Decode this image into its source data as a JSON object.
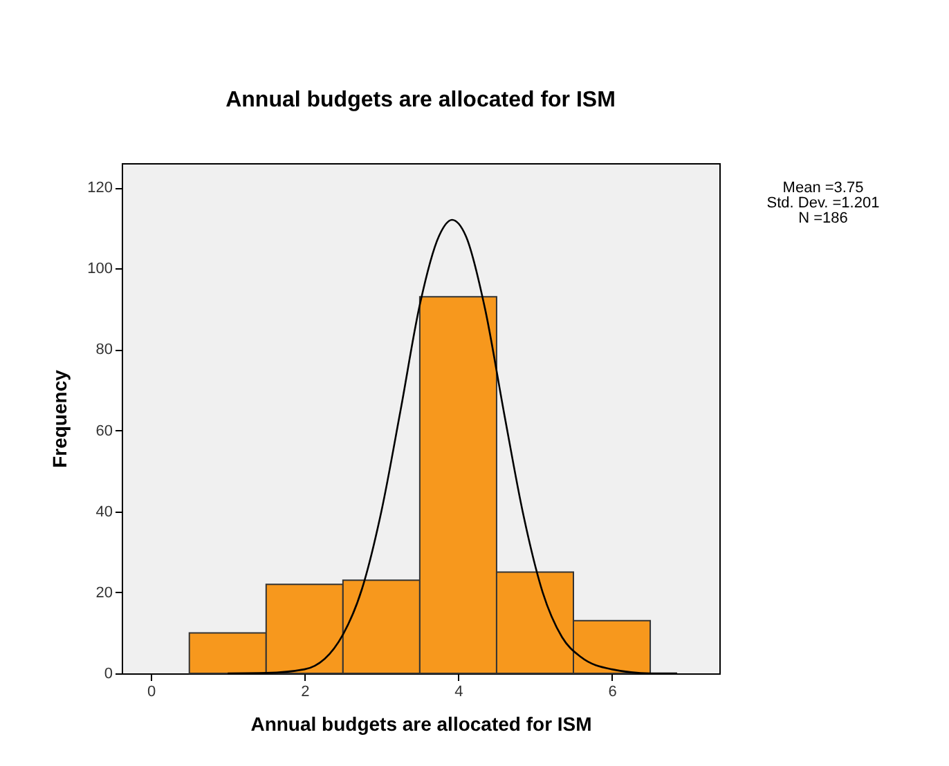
{
  "chart_data": {
    "type": "histogram",
    "title": "Annual budgets are allocated for ISM",
    "xlabel": "Annual budgets are allocated for ISM",
    "ylabel": "Frequency",
    "series": [
      {
        "bins": [
          0.5,
          1.5,
          2.5,
          3.5,
          4.5,
          5.5,
          6.5
        ],
        "values": [
          10,
          22,
          23,
          93,
          25,
          13
        ],
        "color": "#f7981d"
      },
      {
        "type": "line",
        "x": [
          1.0,
          1.5,
          2.0,
          2.5,
          2.75,
          3.0,
          3.25,
          3.5,
          3.75,
          3.92,
          4.1,
          4.35,
          4.6,
          4.85,
          5.1,
          5.35,
          5.6,
          6.0,
          6.5,
          6.85
        ],
        "values": [
          0,
          0.1,
          1,
          9.6,
          21,
          40,
          65,
          91,
          108,
          112,
          108,
          90,
          64,
          39,
          20,
          9,
          4,
          1,
          0,
          0
        ],
        "color": "#000000"
      }
    ],
    "annotations": [
      "Mean =3.75",
      "Std. Dev. =1.201",
      "N =186"
    ],
    "xlim": [
      -0.38,
      7.4
    ],
    "ylim": [
      0,
      126
    ],
    "xticks": [
      0,
      2,
      4,
      6
    ],
    "yticks": [
      0,
      20,
      40,
      60,
      80,
      100,
      120
    ],
    "grid": false
  }
}
